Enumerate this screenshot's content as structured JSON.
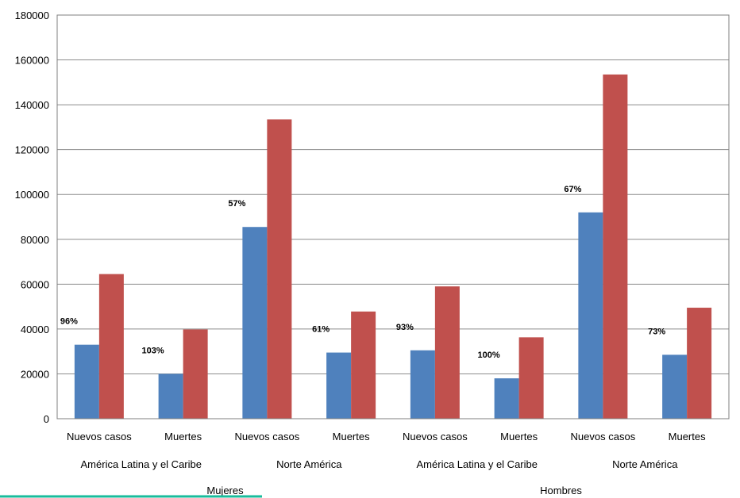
{
  "chart_data": {
    "type": "bar",
    "ylim": [
      0,
      180000
    ],
    "yticks": [
      0,
      20000,
      40000,
      60000,
      80000,
      100000,
      120000,
      140000,
      160000,
      180000
    ],
    "grid": true,
    "categories": [
      "Nuevos casos",
      "Muertes",
      "Nuevos casos",
      "Muertes",
      "Nuevos casos",
      "Muertes",
      "Nuevos casos",
      "Muertes"
    ],
    "regions": [
      "América Latina y el Caribe",
      "Norte América",
      "América Latina y el Caribe",
      "Norte América"
    ],
    "sexes": [
      "Mujeres",
      "Hombres"
    ],
    "series": [
      {
        "color": "#4F81BD",
        "values": [
          33000,
          20000,
          85500,
          29500,
          30500,
          18000,
          92000,
          28500
        ]
      },
      {
        "color": "#C0504D",
        "values": [
          64500,
          39800,
          133500,
          47800,
          59000,
          36300,
          153500,
          49500
        ]
      }
    ],
    "data_labels": [
      "96%",
      "103%",
      "57%",
      "61%",
      "93%",
      "100%",
      "67%",
      "73%"
    ]
  }
}
